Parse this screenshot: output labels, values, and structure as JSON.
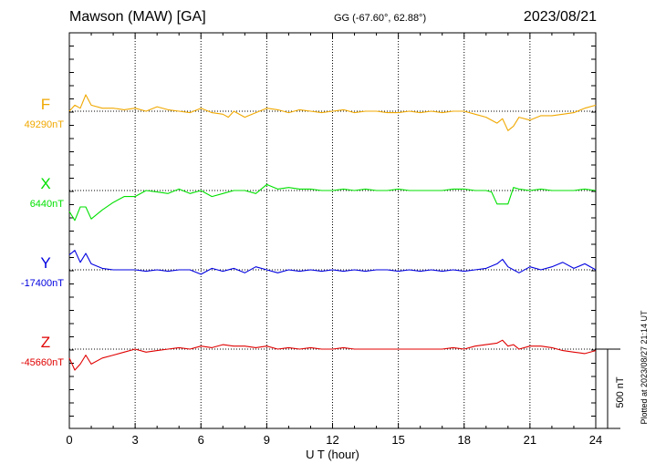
{
  "header": {
    "station": "Mawson (MAW)  [GA]",
    "coords": "GG (-67.60°,  62.88°)",
    "date": "2023/08/21"
  },
  "footer": {
    "plotted": "Plotted at 2023/08/27 21:14 UT"
  },
  "chart_data": {
    "type": "line",
    "xlabel": "U T (hour)",
    "xlim": [
      0,
      24
    ],
    "xticks": [
      "0",
      "3",
      "6",
      "9",
      "12",
      "15",
      "18",
      "21",
      "24"
    ],
    "scale_bar_label": "500 nT",
    "scale_bar_nT": 500,
    "series": [
      {
        "name": "F",
        "baseline_label": "49290nT",
        "baseline_nT": 49290,
        "color": "#f0a800",
        "x": [
          0,
          0.25,
          0.5,
          0.75,
          1,
          1.5,
          2,
          2.5,
          3,
          3.5,
          4,
          4.5,
          5,
          5.5,
          6,
          6.5,
          7,
          7.25,
          7.5,
          8,
          8.5,
          9,
          9.5,
          10,
          10.5,
          11,
          11.5,
          12,
          12.5,
          13,
          13.5,
          14,
          14.5,
          15,
          15.5,
          16,
          16.5,
          17,
          17.5,
          18,
          18.5,
          19,
          19.5,
          19.75,
          20,
          20.25,
          20.5,
          21,
          21.5,
          22,
          22.5,
          23,
          23.5,
          24
        ],
        "values": [
          49290,
          49330,
          49310,
          49400,
          49330,
          49310,
          49310,
          49300,
          49310,
          49290,
          49320,
          49300,
          49290,
          49280,
          49310,
          49280,
          49270,
          49250,
          49290,
          49250,
          49280,
          49310,
          49300,
          49280,
          49300,
          49290,
          49280,
          49290,
          49300,
          49280,
          49290,
          49290,
          49280,
          49280,
          49290,
          49280,
          49290,
          49280,
          49290,
          49290,
          49270,
          49250,
          49210,
          49240,
          49160,
          49190,
          49250,
          49230,
          49260,
          49260,
          49270,
          49280,
          49310,
          49330
        ]
      },
      {
        "name": "X",
        "baseline_label": "6440nT",
        "baseline_nT": 6440,
        "color": "#00e000",
        "x": [
          0,
          0.25,
          0.5,
          0.75,
          1,
          1.5,
          2,
          2.5,
          3,
          3.5,
          4,
          4.5,
          5,
          5.5,
          6,
          6.5,
          7,
          7.5,
          8,
          8.5,
          9,
          9.5,
          10,
          10.5,
          11,
          11.5,
          12,
          12.5,
          13,
          13.5,
          14,
          14.5,
          15,
          15.5,
          16,
          16.5,
          17,
          17.5,
          18,
          18.5,
          19,
          19.25,
          19.5,
          20,
          20.25,
          20.5,
          21,
          21.5,
          22,
          22.5,
          23,
          23.5,
          24
        ],
        "values": [
          6300,
          6240,
          6330,
          6330,
          6250,
          6310,
          6360,
          6400,
          6400,
          6440,
          6430,
          6420,
          6450,
          6420,
          6440,
          6400,
          6420,
          6440,
          6440,
          6420,
          6480,
          6450,
          6460,
          6450,
          6450,
          6440,
          6440,
          6450,
          6440,
          6450,
          6440,
          6440,
          6450,
          6440,
          6440,
          6440,
          6440,
          6450,
          6450,
          6440,
          6440,
          6430,
          6350,
          6350,
          6460,
          6450,
          6440,
          6450,
          6440,
          6440,
          6440,
          6450,
          6440
        ]
      },
      {
        "name": "Y",
        "baseline_label": "-17400nT",
        "baseline_nT": -17400,
        "color": "#0000e0",
        "x": [
          0,
          0.25,
          0.5,
          0.75,
          1,
          1.5,
          2,
          2.5,
          3,
          3.5,
          4,
          4.5,
          5,
          5.5,
          6,
          6.5,
          7,
          7.5,
          8,
          8.5,
          9,
          9.5,
          10,
          10.5,
          11,
          11.5,
          12,
          12.5,
          13,
          13.5,
          14,
          14.5,
          15,
          15.5,
          16,
          16.5,
          17,
          17.5,
          18,
          18.5,
          19,
          19.5,
          19.75,
          20,
          20.25,
          20.5,
          21,
          21.5,
          22,
          22.5,
          23,
          23.5,
          24
        ],
        "values": [
          -17300,
          -17270,
          -17350,
          -17290,
          -17360,
          -17390,
          -17400,
          -17400,
          -17400,
          -17410,
          -17400,
          -17410,
          -17400,
          -17400,
          -17430,
          -17390,
          -17410,
          -17390,
          -17420,
          -17380,
          -17400,
          -17420,
          -17400,
          -17410,
          -17400,
          -17410,
          -17400,
          -17410,
          -17400,
          -17410,
          -17400,
          -17400,
          -17410,
          -17400,
          -17410,
          -17400,
          -17410,
          -17400,
          -17410,
          -17400,
          -17390,
          -17360,
          -17330,
          -17380,
          -17400,
          -17420,
          -17380,
          -17400,
          -17380,
          -17350,
          -17390,
          -17360,
          -17400
        ]
      },
      {
        "name": "Z",
        "baseline_label": "-45660nT",
        "baseline_nT": -45660,
        "color": "#e00000",
        "x": [
          0,
          0.25,
          0.5,
          0.75,
          1,
          1.5,
          2,
          2.5,
          3,
          3.5,
          4,
          4.5,
          5,
          5.5,
          6,
          6.5,
          7,
          7.5,
          8,
          8.5,
          9,
          9.5,
          10,
          10.5,
          11,
          11.5,
          12,
          12.5,
          13,
          13.5,
          14,
          14.5,
          15,
          15.5,
          16,
          16.5,
          17,
          17.5,
          18,
          18.5,
          19,
          19.5,
          19.75,
          20,
          20.25,
          20.5,
          21,
          21.5,
          22,
          22.5,
          23,
          23.5,
          24
        ],
        "values": [
          -45720,
          -45800,
          -45760,
          -45700,
          -45760,
          -45720,
          -45700,
          -45680,
          -45660,
          -45680,
          -45670,
          -45660,
          -45650,
          -45660,
          -45640,
          -45650,
          -45630,
          -45640,
          -45640,
          -45650,
          -45640,
          -45660,
          -45650,
          -45660,
          -45650,
          -45660,
          -45660,
          -45650,
          -45660,
          -45660,
          -45660,
          -45660,
          -45660,
          -45660,
          -45660,
          -45660,
          -45660,
          -45650,
          -45660,
          -45640,
          -45630,
          -45620,
          -45600,
          -45640,
          -45630,
          -45660,
          -45640,
          -45640,
          -45650,
          -45670,
          -45680,
          -45690,
          -45670
        ]
      }
    ]
  }
}
